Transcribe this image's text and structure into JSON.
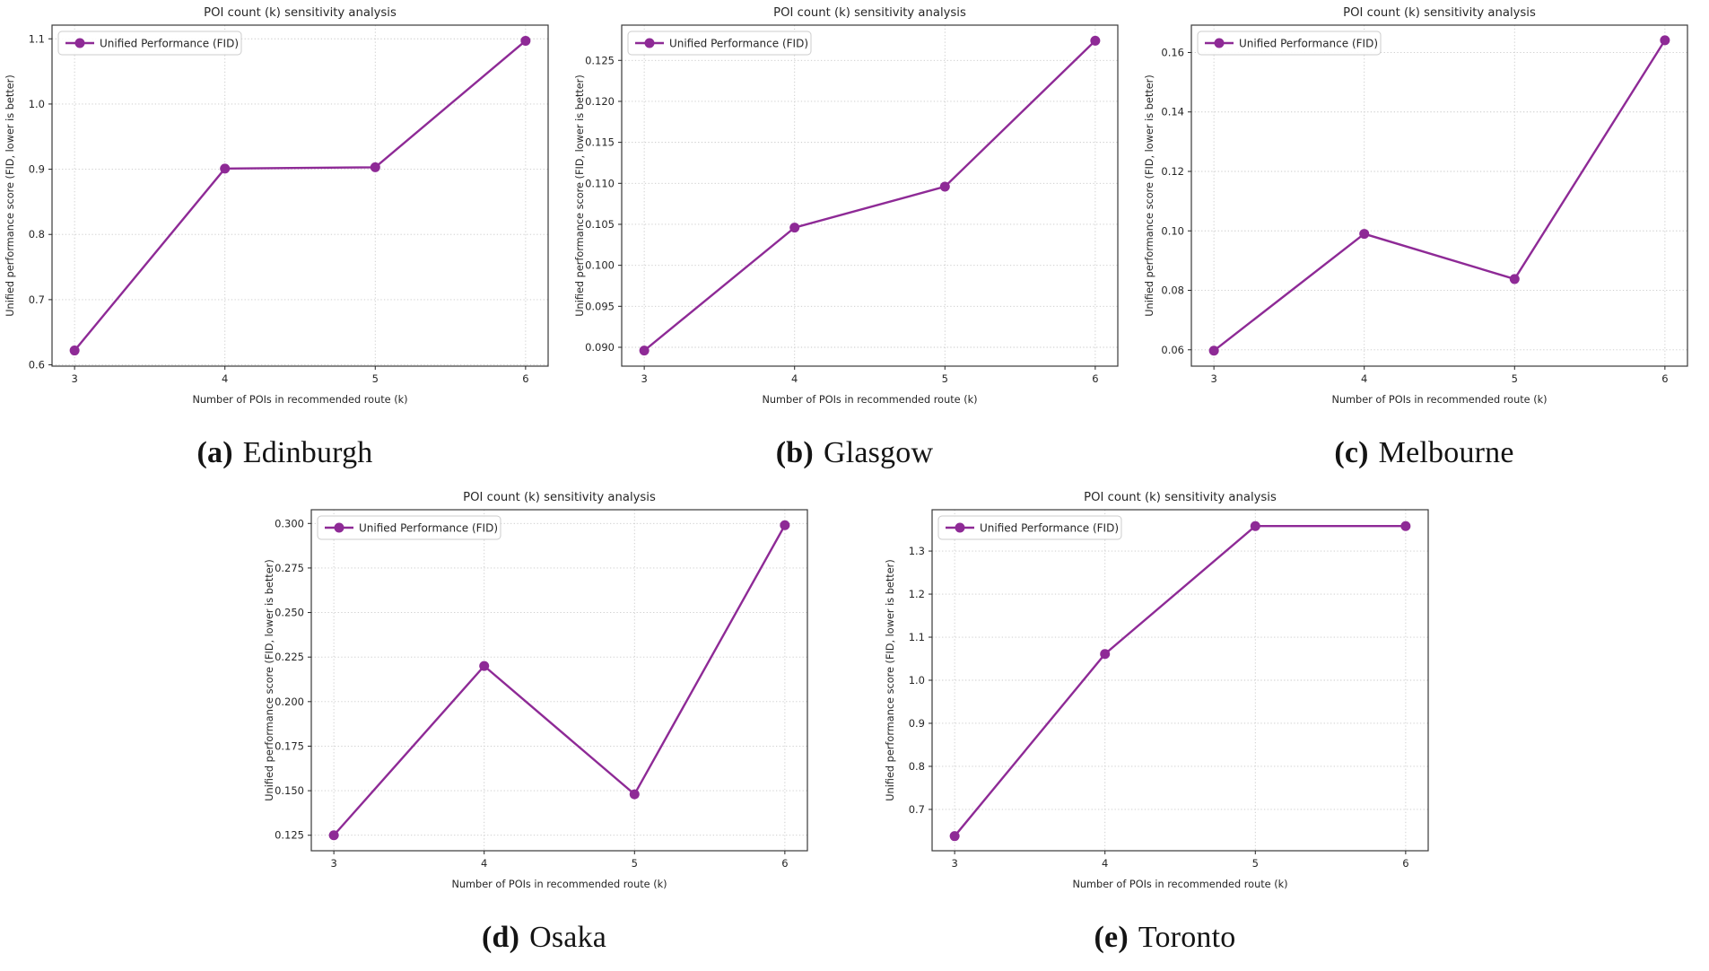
{
  "page": {
    "background": "#ffffff",
    "text_color": "#262626",
    "accent_color": "#8e2a96"
  },
  "chart_data": [
    {
      "type": "line",
      "title": "POI count (k) sensitivity analysis",
      "xlabel": "Number of POIs in recommended route (k)",
      "ylabel": "Unified performance score (FID, lower is better)",
      "legend": [
        "Unified Performance (FID)"
      ],
      "legend_position": "upper left",
      "grid": true,
      "line_color": "#8e2a96",
      "x": [
        3,
        4,
        5,
        6
      ],
      "series": [
        {
          "name": "Unified Performance (FID)",
          "values": [
            0.622,
            0.901,
            0.903,
            1.097
          ]
        }
      ],
      "xticks": [
        3,
        4,
        5,
        6
      ],
      "yticks": [
        0.6,
        0.7,
        0.8,
        0.9,
        1.0,
        1.1
      ],
      "ytick_labels": [
        "0.6",
        "0.7",
        "0.8",
        "0.9",
        "1.0",
        "1.1"
      ],
      "xlim": [
        2.85,
        6.15
      ],
      "ylim": [
        0.598,
        1.121
      ],
      "caption_label": "(a)",
      "caption_text": "Edinburgh"
    },
    {
      "type": "line",
      "title": "POI count (k) sensitivity analysis",
      "xlabel": "Number of POIs in recommended route (k)",
      "ylabel": "Unified performance score (FID, lower is better)",
      "legend": [
        "Unified Performance (FID)"
      ],
      "legend_position": "upper left",
      "grid": true,
      "line_color": "#8e2a96",
      "x": [
        3,
        4,
        5,
        6
      ],
      "series": [
        {
          "name": "Unified Performance (FID)",
          "values": [
            0.0896,
            0.1046,
            0.1096,
            0.1274
          ]
        }
      ],
      "xticks": [
        3,
        4,
        5,
        6
      ],
      "yticks": [
        0.09,
        0.095,
        0.1,
        0.105,
        0.11,
        0.115,
        0.12,
        0.125
      ],
      "ytick_labels": [
        "0.090",
        "0.095",
        "0.100",
        "0.105",
        "0.110",
        "0.115",
        "0.120",
        "0.125"
      ],
      "xlim": [
        2.85,
        6.15
      ],
      "ylim": [
        0.0877,
        0.1293
      ],
      "caption_label": "(b)",
      "caption_text": "Glasgow"
    },
    {
      "type": "line",
      "title": "POI count (k) sensitivity analysis",
      "xlabel": "Number of POIs in recommended route (k)",
      "ylabel": "Unified performance score (FID, lower is better)",
      "legend": [
        "Unified Performance (FID)"
      ],
      "legend_position": "upper left",
      "grid": true,
      "line_color": "#8e2a96",
      "x": [
        3,
        4,
        5,
        6
      ],
      "series": [
        {
          "name": "Unified Performance (FID)",
          "values": [
            0.0597,
            0.099,
            0.0838,
            0.1641
          ]
        }
      ],
      "xticks": [
        3,
        4,
        5,
        6
      ],
      "yticks": [
        0.06,
        0.08,
        0.1,
        0.12,
        0.14,
        0.16
      ],
      "ytick_labels": [
        "0.06",
        "0.08",
        "0.10",
        "0.12",
        "0.14",
        "0.16"
      ],
      "xlim": [
        2.85,
        6.15
      ],
      "ylim": [
        0.0545,
        0.1692
      ],
      "caption_label": "(c)",
      "caption_text": "Melbourne"
    },
    {
      "type": "line",
      "title": "POI count (k) sensitivity analysis",
      "xlabel": "Number of POIs in recommended route (k)",
      "ylabel": "Unified performance score (FID, lower is better)",
      "legend": [
        "Unified Performance (FID)"
      ],
      "legend_position": "upper left",
      "grid": true,
      "line_color": "#8e2a96",
      "x": [
        3,
        4,
        5,
        6
      ],
      "series": [
        {
          "name": "Unified Performance (FID)",
          "values": [
            0.125,
            0.22,
            0.148,
            0.299
          ]
        }
      ],
      "xticks": [
        3,
        4,
        5,
        6
      ],
      "yticks": [
        0.125,
        0.15,
        0.175,
        0.2,
        0.225,
        0.25,
        0.275,
        0.3
      ],
      "ytick_labels": [
        "0.125",
        "0.150",
        "0.175",
        "0.200",
        "0.225",
        "0.250",
        "0.275",
        "0.300"
      ],
      "xlim": [
        2.85,
        6.15
      ],
      "ylim": [
        0.1163,
        0.3077
      ],
      "caption_label": "(d)",
      "caption_text": "Osaka"
    },
    {
      "type": "line",
      "title": "POI count (k) sensitivity analysis",
      "xlabel": "Number of POIs in recommended route (k)",
      "ylabel": "Unified performance score (FID, lower is better)",
      "legend": [
        "Unified Performance (FID)"
      ],
      "legend_position": "upper left",
      "grid": true,
      "line_color": "#8e2a96",
      "x": [
        3,
        4,
        5,
        6
      ],
      "series": [
        {
          "name": "Unified Performance (FID)",
          "values": [
            0.638,
            1.061,
            1.358,
            1.358
          ]
        }
      ],
      "xticks": [
        3,
        4,
        5,
        6
      ],
      "yticks": [
        0.7,
        0.8,
        0.9,
        1.0,
        1.1,
        1.2,
        1.3
      ],
      "ytick_labels": [
        "0.7",
        "0.8",
        "0.9",
        "1.0",
        "1.1",
        "1.2",
        "1.3"
      ],
      "xlim": [
        2.85,
        6.15
      ],
      "ylim": [
        0.604,
        1.396
      ],
      "caption_label": "(e)",
      "caption_text": "Toronto"
    }
  ]
}
